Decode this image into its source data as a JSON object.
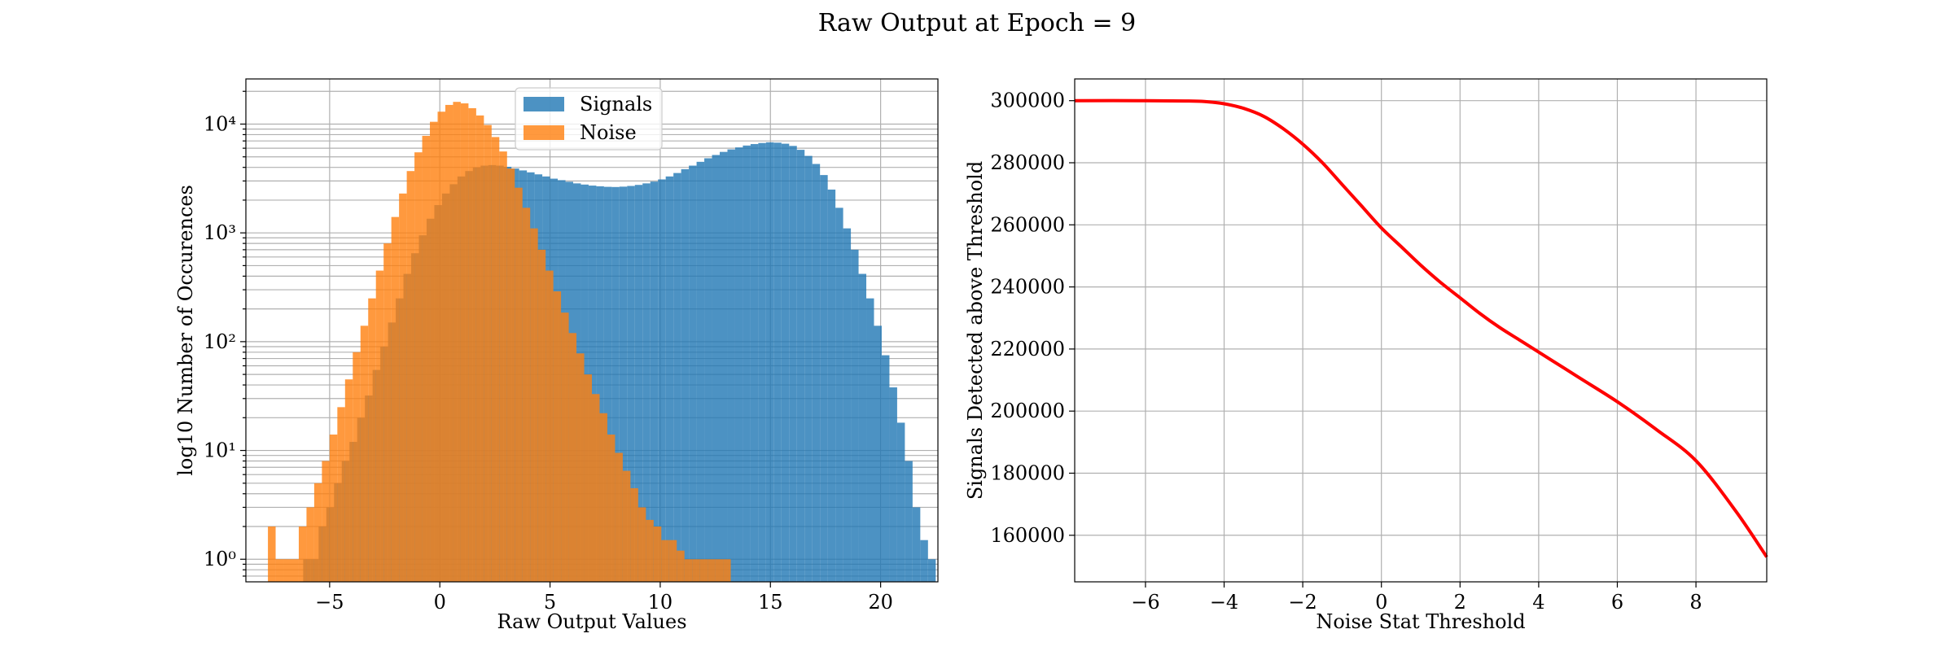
{
  "figure": {
    "title": "Raw Output at Epoch = 9"
  },
  "colors": {
    "signals": "#1f77b4",
    "noise": "#ff7f0e",
    "curve": "#ff0000",
    "grid": "#b0b0b0"
  },
  "chart_data": [
    {
      "type": "bar",
      "subtype": "histogram",
      "xlabel": "Raw Output Values",
      "ylabel": "log10 Number of Occurences",
      "yscale": "log",
      "xlim": [
        -8.8,
        22.6
      ],
      "ylim": [
        0.62,
        26000
      ],
      "xticks": [
        -5,
        0,
        5,
        10,
        15,
        20
      ],
      "xtick_labels": [
        "−5",
        "0",
        "5",
        "10",
        "15",
        "20"
      ],
      "yticks": [
        1,
        10,
        100,
        1000,
        10000
      ],
      "ytick_labels": [
        "10⁰",
        "10¹",
        "10²",
        "10³",
        "10⁴"
      ],
      "grid": true,
      "legend": {
        "position": "top-center",
        "entries": [
          "Signals",
          "Noise"
        ]
      },
      "bin_width": 0.35,
      "series": [
        {
          "name": "Signals",
          "color": "#1f77b4",
          "alpha": 0.8,
          "bin_start": -6.2,
          "values": [
            1,
            1,
            2,
            3,
            5,
            8,
            12,
            20,
            32,
            55,
            90,
            150,
            250,
            420,
            650,
            950,
            1350,
            1800,
            2300,
            2800,
            3300,
            3700,
            4000,
            4150,
            4200,
            4150,
            4050,
            3900,
            3750,
            3600,
            3450,
            3300,
            3150,
            3050,
            2950,
            2850,
            2780,
            2720,
            2680,
            2650,
            2640,
            2660,
            2700,
            2760,
            2850,
            2960,
            3100,
            3300,
            3550,
            3850,
            4150,
            4500,
            4850,
            5200,
            5550,
            5850,
            6100,
            6350,
            6550,
            6700,
            6800,
            6750,
            6600,
            6300,
            5800,
            5100,
            4300,
            3400,
            2500,
            1700,
            1100,
            700,
            420,
            250,
            140,
            75,
            38,
            18,
            8,
            3,
            1.5,
            1
          ]
        },
        {
          "name": "Noise",
          "color": "#ff7f0e",
          "alpha": 0.8,
          "bin_start": -7.8,
          "values": [
            2,
            1,
            1,
            1,
            2,
            3,
            5,
            8,
            14,
            25,
            45,
            80,
            140,
            250,
            450,
            800,
            1400,
            2300,
            3700,
            5500,
            7800,
            10500,
            13000,
            15000,
            16000,
            15500,
            14000,
            12000,
            9800,
            7600,
            5600,
            3900,
            2600,
            1700,
            1100,
            700,
            450,
            290,
            185,
            120,
            78,
            50,
            33,
            22,
            14,
            9.5,
            6.5,
            4.5,
            3,
            2.3,
            2,
            1.5,
            1.5,
            1.2,
            1,
            1,
            1,
            1,
            1,
            1
          ]
        }
      ]
    },
    {
      "type": "line",
      "xlabel": "Noise Stat Threshold",
      "ylabel": "Signals Detected above Threshold",
      "xlim": [
        -7.8,
        9.8
      ],
      "ylim": [
        145000,
        307000
      ],
      "xticks": [
        -6,
        -4,
        -2,
        0,
        2,
        4,
        6,
        8
      ],
      "xtick_labels": [
        "−6",
        "−4",
        "−2",
        "0",
        "2",
        "4",
        "6",
        "8"
      ],
      "yticks": [
        160000,
        180000,
        200000,
        220000,
        240000,
        260000,
        280000,
        300000
      ],
      "ytick_labels": [
        "160000",
        "180000",
        "200000",
        "220000",
        "240000",
        "260000",
        "280000",
        "300000"
      ],
      "grid": true,
      "series": [
        {
          "color": "#ff0000",
          "x": [
            -7.8,
            -6,
            -5,
            -4.5,
            -4,
            -3.5,
            -3,
            -2.5,
            -2,
            -1.5,
            -1,
            -0.5,
            0,
            0.5,
            1,
            1.5,
            2,
            2.5,
            3,
            3.5,
            4,
            5,
            6,
            7,
            8,
            9,
            9.8
          ],
          "y": [
            300000,
            300000,
            299900,
            299700,
            299000,
            297500,
            295000,
            291000,
            286000,
            280000,
            273000,
            266000,
            259000,
            253000,
            247000,
            241500,
            236500,
            231500,
            227000,
            223000,
            219000,
            211000,
            203000,
            194000,
            184000,
            168000,
            153000
          ]
        }
      ]
    }
  ]
}
